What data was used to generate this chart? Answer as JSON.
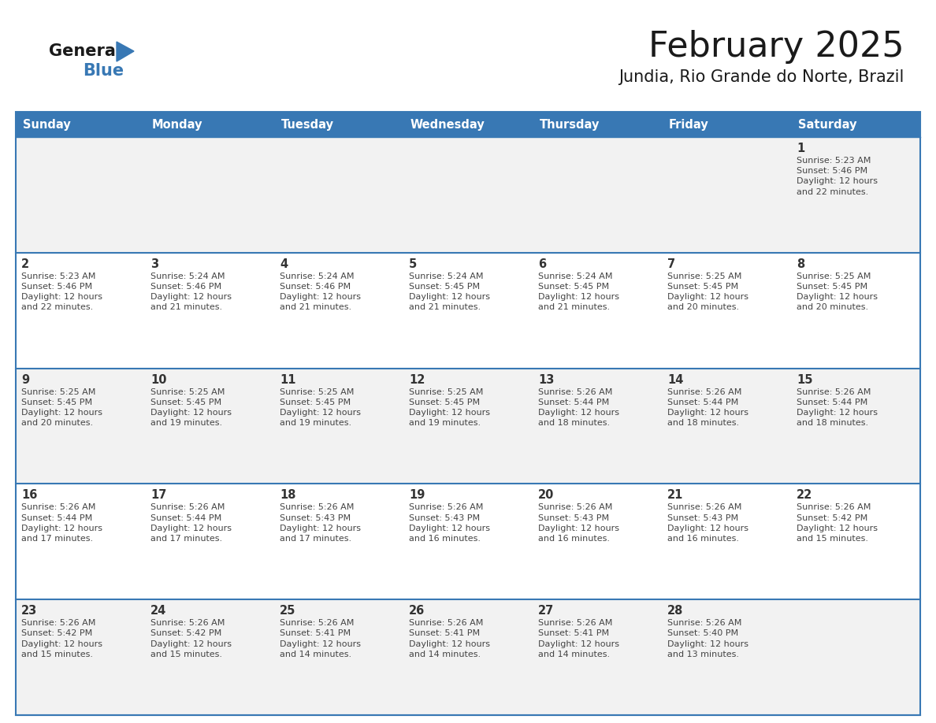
{
  "title": "February 2025",
  "subtitle": "Jundia, Rio Grande do Norte, Brazil",
  "header_color": "#3878b4",
  "header_text_color": "#ffffff",
  "border_color": "#3878b4",
  "day_num_color": "#333333",
  "info_text_color": "#444444",
  "days_of_week": [
    "Sunday",
    "Monday",
    "Tuesday",
    "Wednesday",
    "Thursday",
    "Friday",
    "Saturday"
  ],
  "calendar": [
    [
      null,
      null,
      null,
      null,
      null,
      null,
      {
        "day": 1,
        "sunrise": "5:23 AM",
        "sunset": "5:46 PM",
        "dl1": "Daylight: 12 hours",
        "dl2": "and 22 minutes."
      }
    ],
    [
      {
        "day": 2,
        "sunrise": "5:23 AM",
        "sunset": "5:46 PM",
        "dl1": "Daylight: 12 hours",
        "dl2": "and 22 minutes."
      },
      {
        "day": 3,
        "sunrise": "5:24 AM",
        "sunset": "5:46 PM",
        "dl1": "Daylight: 12 hours",
        "dl2": "and 21 minutes."
      },
      {
        "day": 4,
        "sunrise": "5:24 AM",
        "sunset": "5:46 PM",
        "dl1": "Daylight: 12 hours",
        "dl2": "and 21 minutes."
      },
      {
        "day": 5,
        "sunrise": "5:24 AM",
        "sunset": "5:45 PM",
        "dl1": "Daylight: 12 hours",
        "dl2": "and 21 minutes."
      },
      {
        "day": 6,
        "sunrise": "5:24 AM",
        "sunset": "5:45 PM",
        "dl1": "Daylight: 12 hours",
        "dl2": "and 21 minutes."
      },
      {
        "day": 7,
        "sunrise": "5:25 AM",
        "sunset": "5:45 PM",
        "dl1": "Daylight: 12 hours",
        "dl2": "and 20 minutes."
      },
      {
        "day": 8,
        "sunrise": "5:25 AM",
        "sunset": "5:45 PM",
        "dl1": "Daylight: 12 hours",
        "dl2": "and 20 minutes."
      }
    ],
    [
      {
        "day": 9,
        "sunrise": "5:25 AM",
        "sunset": "5:45 PM",
        "dl1": "Daylight: 12 hours",
        "dl2": "and 20 minutes."
      },
      {
        "day": 10,
        "sunrise": "5:25 AM",
        "sunset": "5:45 PM",
        "dl1": "Daylight: 12 hours",
        "dl2": "and 19 minutes."
      },
      {
        "day": 11,
        "sunrise": "5:25 AM",
        "sunset": "5:45 PM",
        "dl1": "Daylight: 12 hours",
        "dl2": "and 19 minutes."
      },
      {
        "day": 12,
        "sunrise": "5:25 AM",
        "sunset": "5:45 PM",
        "dl1": "Daylight: 12 hours",
        "dl2": "and 19 minutes."
      },
      {
        "day": 13,
        "sunrise": "5:26 AM",
        "sunset": "5:44 PM",
        "dl1": "Daylight: 12 hours",
        "dl2": "and 18 minutes."
      },
      {
        "day": 14,
        "sunrise": "5:26 AM",
        "sunset": "5:44 PM",
        "dl1": "Daylight: 12 hours",
        "dl2": "and 18 minutes."
      },
      {
        "day": 15,
        "sunrise": "5:26 AM",
        "sunset": "5:44 PM",
        "dl1": "Daylight: 12 hours",
        "dl2": "and 18 minutes."
      }
    ],
    [
      {
        "day": 16,
        "sunrise": "5:26 AM",
        "sunset": "5:44 PM",
        "dl1": "Daylight: 12 hours",
        "dl2": "and 17 minutes."
      },
      {
        "day": 17,
        "sunrise": "5:26 AM",
        "sunset": "5:44 PM",
        "dl1": "Daylight: 12 hours",
        "dl2": "and 17 minutes."
      },
      {
        "day": 18,
        "sunrise": "5:26 AM",
        "sunset": "5:43 PM",
        "dl1": "Daylight: 12 hours",
        "dl2": "and 17 minutes."
      },
      {
        "day": 19,
        "sunrise": "5:26 AM",
        "sunset": "5:43 PM",
        "dl1": "Daylight: 12 hours",
        "dl2": "and 16 minutes."
      },
      {
        "day": 20,
        "sunrise": "5:26 AM",
        "sunset": "5:43 PM",
        "dl1": "Daylight: 12 hours",
        "dl2": "and 16 minutes."
      },
      {
        "day": 21,
        "sunrise": "5:26 AM",
        "sunset": "5:43 PM",
        "dl1": "Daylight: 12 hours",
        "dl2": "and 16 minutes."
      },
      {
        "day": 22,
        "sunrise": "5:26 AM",
        "sunset": "5:42 PM",
        "dl1": "Daylight: 12 hours",
        "dl2": "and 15 minutes."
      }
    ],
    [
      {
        "day": 23,
        "sunrise": "5:26 AM",
        "sunset": "5:42 PM",
        "dl1": "Daylight: 12 hours",
        "dl2": "and 15 minutes."
      },
      {
        "day": 24,
        "sunrise": "5:26 AM",
        "sunset": "5:42 PM",
        "dl1": "Daylight: 12 hours",
        "dl2": "and 15 minutes."
      },
      {
        "day": 25,
        "sunrise": "5:26 AM",
        "sunset": "5:41 PM",
        "dl1": "Daylight: 12 hours",
        "dl2": "and 14 minutes."
      },
      {
        "day": 26,
        "sunrise": "5:26 AM",
        "sunset": "5:41 PM",
        "dl1": "Daylight: 12 hours",
        "dl2": "and 14 minutes."
      },
      {
        "day": 27,
        "sunrise": "5:26 AM",
        "sunset": "5:41 PM",
        "dl1": "Daylight: 12 hours",
        "dl2": "and 14 minutes."
      },
      {
        "day": 28,
        "sunrise": "5:26 AM",
        "sunset": "5:40 PM",
        "dl1": "Daylight: 12 hours",
        "dl2": "and 13 minutes."
      },
      null
    ]
  ],
  "logo_general_color": "#1a1a1a",
  "logo_blue_color": "#3878b4",
  "row_bg_odd": "#f2f2f2",
  "row_bg_even": "#ffffff"
}
